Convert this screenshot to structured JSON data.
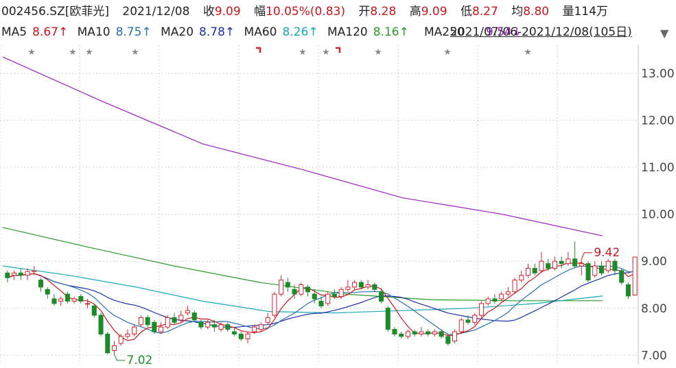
{
  "header": {
    "code": "002456.SZ[欧菲光]",
    "date": "2021/12/08",
    "close_label": "收",
    "close": "9.09",
    "change_label": "幅",
    "change": "10.05%(0.83)",
    "open_label": "开",
    "open": "8.28",
    "high_label": "高",
    "high": "9.09",
    "low_label": "低",
    "low": "8.27",
    "avg_label": "均",
    "avg": "8.80",
    "vol_label": "量",
    "vol": "114万"
  },
  "ma_row": {
    "items": [
      {
        "label": "MA5",
        "value": "8.67↑",
        "color": "#c8161d"
      },
      {
        "label": "MA10",
        "value": "8.75↑",
        "color": "#2a6fb0"
      },
      {
        "label": "MA20",
        "value": "8.78↑",
        "color": "#1b2fa8"
      },
      {
        "label": "MA60",
        "value": "8.26↑",
        "color": "#17a8b8"
      },
      {
        "label": "MA120",
        "value": "8.16↑",
        "color": "#2a9a2a"
      },
      {
        "label": "MA250",
        "value": "9.54↓",
        "color": "#9b1fc0"
      }
    ],
    "range": "2021/07/06-2021/12/08(105日)",
    "dropdown_icon": "triangle-down-icon"
  },
  "chart_data": {
    "type": "candlestick",
    "ylim": [
      6.8,
      13.6
    ],
    "yticks": [
      "13.00",
      "12.00",
      "11.00",
      "10.00",
      "9.00",
      "8.00",
      "7.00"
    ],
    "annotations": [
      {
        "text": "9.42",
        "index": 86
      },
      {
        "text": "7.02",
        "index": 16
      }
    ],
    "markers": [
      "star",
      "star",
      "star",
      "star",
      "flag",
      "star",
      "star",
      "flag",
      "star",
      "star",
      "star"
    ],
    "colors": {
      "up": "#d3242c",
      "down": "#1d8a2a",
      "grid": "#cfcfcf",
      "ma5": "#c8161d",
      "ma10": "#2a6fb0",
      "ma20": "#1b2fa8",
      "ma60": "#17a8b8",
      "ma120": "#2a9a2a",
      "ma250": "#9b1fc0"
    },
    "ma250": [
      13.35,
      12.4,
      11.5,
      10.95,
      10.35,
      10.0,
      9.54
    ],
    "ma120": [
      9.72,
      9.3,
      8.9,
      8.55,
      8.3,
      8.18,
      8.16,
      8.16
    ],
    "ma60": [
      8.9,
      8.7,
      8.45,
      8.15,
      7.93,
      7.9,
      7.95,
      8.0,
      8.1,
      8.26
    ],
    "candles": [
      [
        8.75,
        8.65,
        8.8,
        8.55
      ],
      [
        8.7,
        8.75,
        8.8,
        8.6
      ],
      [
        8.75,
        8.7,
        8.85,
        8.6
      ],
      [
        8.7,
        8.78,
        8.85,
        8.6
      ],
      [
        8.78,
        8.8,
        8.9,
        8.7
      ],
      [
        8.6,
        8.45,
        8.65,
        8.35
      ],
      [
        8.4,
        8.3,
        8.45,
        8.2
      ],
      [
        8.2,
        8.1,
        8.3,
        8.05
      ],
      [
        8.15,
        8.2,
        8.25,
        8.05
      ],
      [
        8.3,
        8.15,
        8.35,
        8.1
      ],
      [
        8.15,
        8.2,
        8.25,
        8.1
      ],
      [
        8.25,
        8.15,
        8.3,
        8.1
      ],
      [
        8.1,
        8.1,
        8.2,
        8.0
      ],
      [
        8.05,
        7.85,
        8.1,
        7.8
      ],
      [
        7.85,
        7.45,
        7.9,
        7.4
      ],
      [
        7.45,
        7.05,
        7.5,
        7.02
      ],
      [
        7.1,
        7.2,
        7.3,
        7.02
      ],
      [
        7.25,
        7.4,
        7.45,
        7.2
      ],
      [
        7.4,
        7.45,
        7.55,
        7.35
      ],
      [
        7.45,
        7.6,
        7.65,
        7.4
      ],
      [
        7.65,
        7.8,
        7.85,
        7.6
      ],
      [
        7.8,
        7.65,
        7.85,
        7.6
      ],
      [
        7.7,
        7.5,
        7.75,
        7.45
      ],
      [
        7.5,
        7.6,
        7.7,
        7.45
      ],
      [
        7.6,
        7.8,
        7.85,
        7.55
      ],
      [
        7.8,
        7.7,
        7.9,
        7.65
      ],
      [
        7.75,
        7.85,
        7.95,
        7.7
      ],
      [
        7.9,
        7.95,
        8.05,
        7.85
      ],
      [
        7.9,
        7.75,
        7.95,
        7.7
      ],
      [
        7.7,
        7.6,
        7.75,
        7.55
      ],
      [
        7.6,
        7.7,
        7.75,
        7.55
      ],
      [
        7.65,
        7.6,
        7.75,
        7.5
      ],
      [
        7.55,
        7.65,
        7.7,
        7.5
      ],
      [
        7.65,
        7.55,
        7.7,
        7.5
      ],
      [
        7.5,
        7.45,
        7.6,
        7.4
      ],
      [
        7.45,
        7.35,
        7.5,
        7.3
      ],
      [
        7.35,
        7.45,
        7.5,
        7.25
      ],
      [
        7.5,
        7.6,
        7.65,
        7.45
      ],
      [
        7.55,
        7.65,
        7.7,
        7.5
      ],
      [
        7.7,
        7.8,
        7.9,
        7.65
      ],
      [
        7.85,
        8.3,
        8.35,
        7.8
      ],
      [
        8.3,
        8.6,
        8.7,
        8.25
      ],
      [
        8.55,
        8.45,
        8.65,
        8.35
      ],
      [
        8.4,
        8.3,
        8.5,
        8.2
      ],
      [
        8.3,
        8.5,
        8.55,
        8.25
      ],
      [
        8.45,
        8.35,
        8.5,
        8.25
      ],
      [
        8.3,
        8.2,
        8.4,
        8.1
      ],
      [
        8.15,
        8.05,
        8.25,
        8.0
      ],
      [
        8.1,
        8.3,
        8.35,
        8.05
      ],
      [
        8.3,
        8.25,
        8.4,
        8.2
      ],
      [
        8.25,
        8.4,
        8.45,
        8.2
      ],
      [
        8.4,
        8.45,
        8.6,
        8.35
      ],
      [
        8.45,
        8.55,
        8.6,
        8.4
      ],
      [
        8.55,
        8.45,
        8.6,
        8.4
      ],
      [
        8.45,
        8.5,
        8.6,
        8.4
      ],
      [
        8.5,
        8.4,
        8.55,
        8.35
      ],
      [
        8.35,
        8.15,
        8.4,
        8.1
      ],
      [
        8.0,
        7.55,
        8.05,
        7.5
      ],
      [
        7.55,
        7.45,
        7.6,
        7.4
      ],
      [
        7.45,
        7.4,
        7.5,
        7.35
      ],
      [
        7.4,
        7.5,
        7.55,
        7.35
      ],
      [
        7.5,
        7.45,
        7.55,
        7.4
      ],
      [
        7.45,
        7.5,
        7.6,
        7.4
      ],
      [
        7.5,
        7.45,
        7.55,
        7.4
      ],
      [
        7.45,
        7.5,
        7.55,
        7.4
      ],
      [
        7.5,
        7.4,
        7.55,
        7.35
      ],
      [
        7.4,
        7.25,
        7.45,
        7.2
      ],
      [
        7.3,
        7.5,
        7.55,
        7.25
      ],
      [
        7.5,
        7.75,
        7.8,
        7.45
      ],
      [
        7.75,
        7.7,
        7.85,
        7.65
      ],
      [
        7.7,
        7.85,
        7.9,
        7.65
      ],
      [
        7.85,
        8.1,
        8.15,
        7.8
      ],
      [
        8.1,
        8.2,
        8.25,
        8.05
      ],
      [
        8.2,
        8.15,
        8.3,
        8.1
      ],
      [
        8.2,
        8.3,
        8.35,
        8.15
      ],
      [
        8.3,
        8.35,
        8.45,
        8.25
      ],
      [
        8.35,
        8.6,
        8.65,
        8.3
      ],
      [
        8.6,
        8.7,
        8.8,
        8.55
      ],
      [
        8.7,
        8.85,
        8.95,
        8.65
      ],
      [
        8.85,
        8.75,
        8.95,
        8.7
      ],
      [
        8.8,
        9.0,
        9.2,
        8.75
      ],
      [
        8.95,
        8.85,
        9.05,
        8.8
      ],
      [
        8.85,
        9.0,
        9.1,
        8.8
      ],
      [
        9.0,
        8.95,
        9.1,
        8.85
      ],
      [
        8.95,
        9.05,
        9.2,
        8.9
      ],
      [
        9.05,
        8.9,
        9.42,
        8.85
      ],
      [
        8.9,
        8.95,
        9.05,
        8.7
      ],
      [
        8.95,
        8.6,
        9.0,
        8.55
      ],
      [
        8.7,
        8.9,
        9.0,
        8.65
      ],
      [
        8.9,
        8.75,
        9.0,
        8.7
      ],
      [
        8.8,
        9.0,
        9.05,
        8.75
      ],
      [
        9.0,
        8.8,
        9.05,
        8.7
      ],
      [
        8.8,
        8.55,
        8.85,
        8.5
      ],
      [
        8.5,
        8.26,
        8.55,
        8.2
      ],
      [
        8.28,
        9.09,
        9.09,
        8.27
      ]
    ]
  }
}
